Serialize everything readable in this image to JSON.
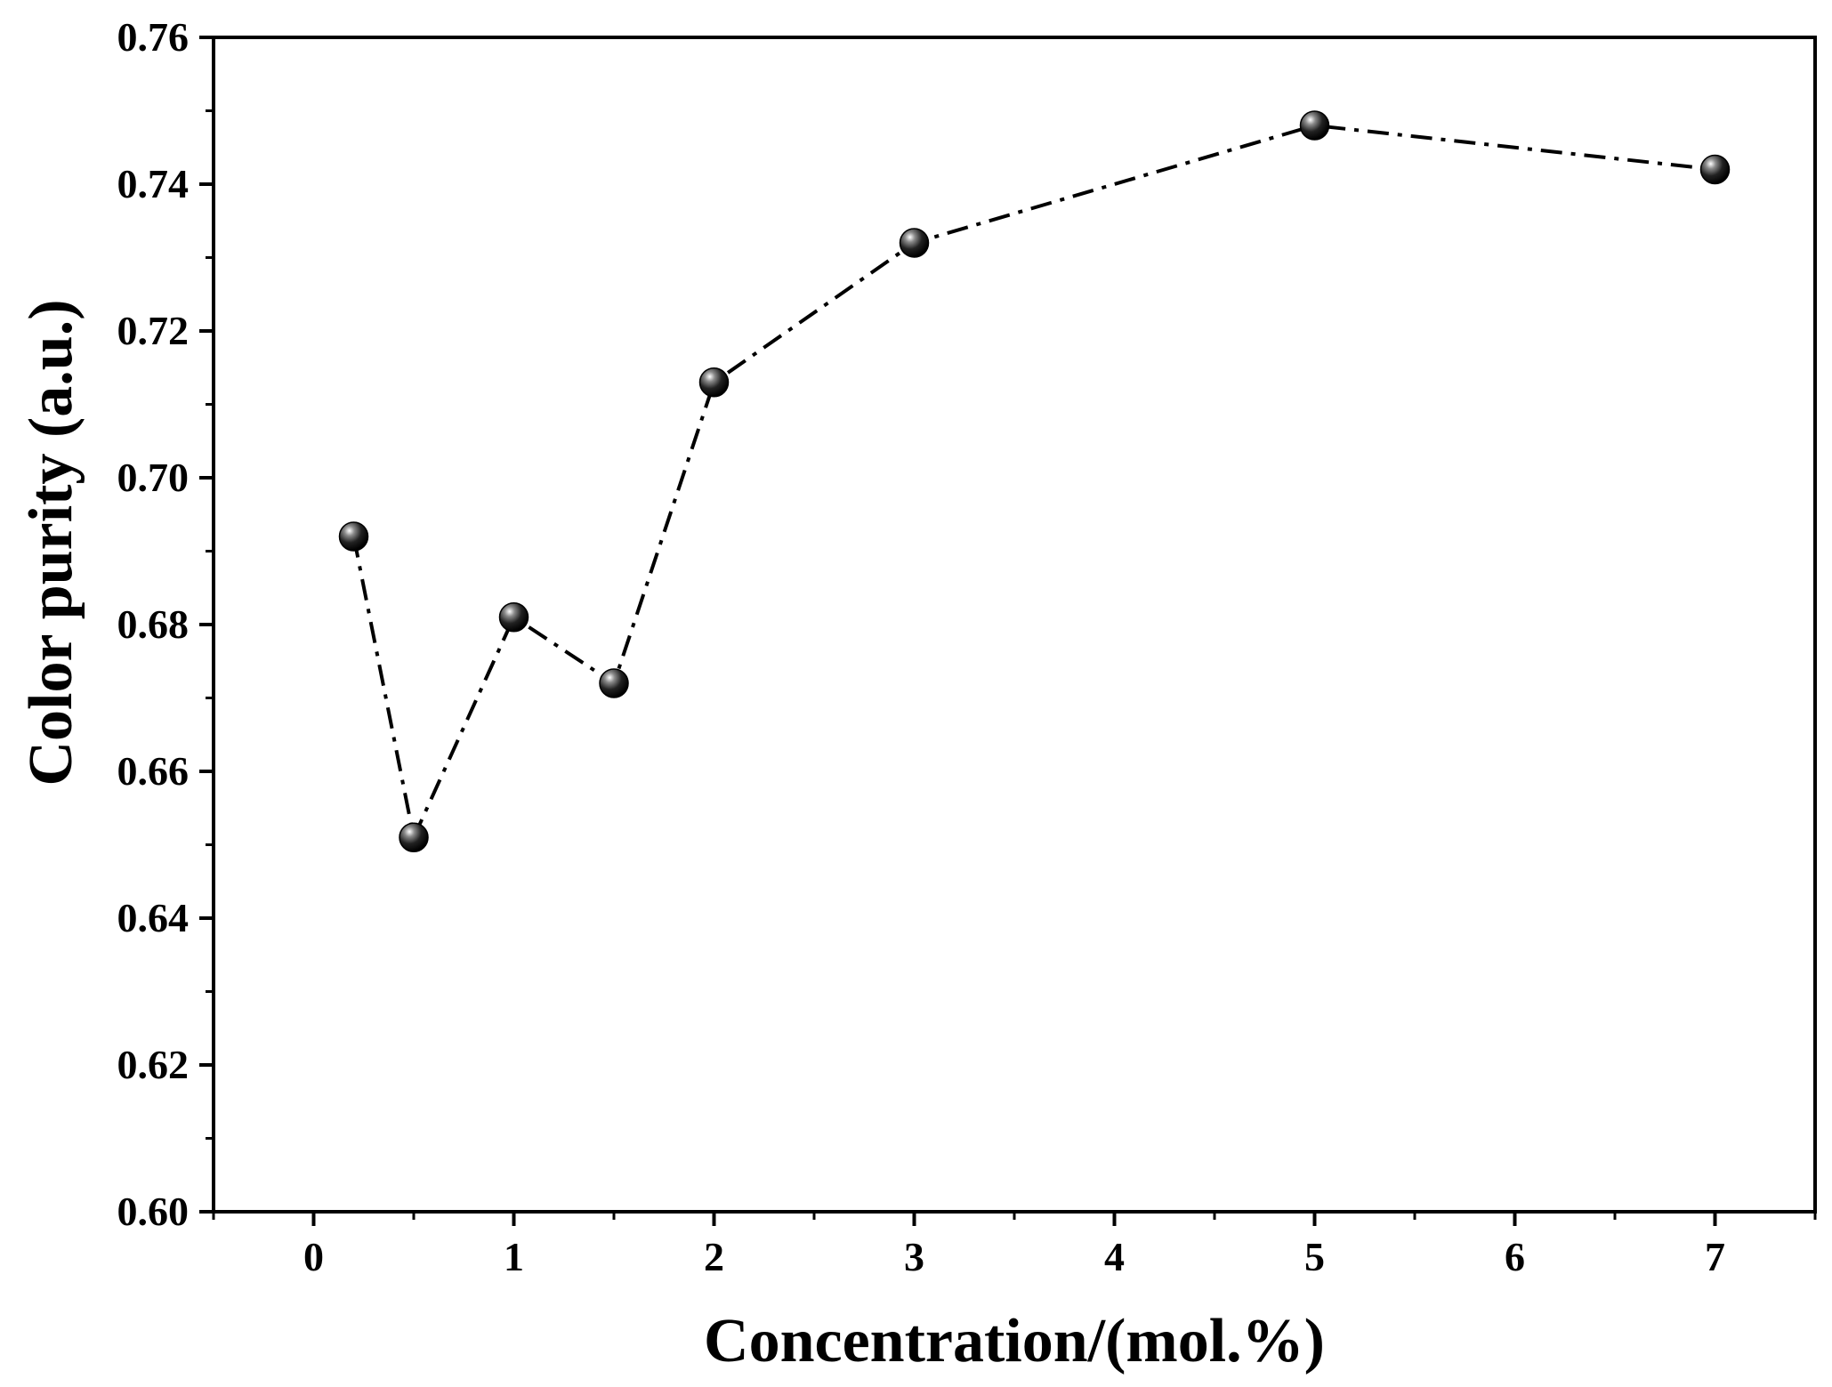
{
  "chart_data": {
    "type": "line",
    "title": "",
    "xlabel": "Concentration/(mol.%)",
    "ylabel": "Color purity (a.u.)",
    "xlim": [
      -0.5,
      7.5
    ],
    "ylim": [
      0.6,
      0.76
    ],
    "xticks": [
      0,
      1,
      2,
      3,
      4,
      5,
      6,
      7
    ],
    "xtick_labels": [
      "0",
      "1",
      "2",
      "3",
      "4",
      "5",
      "6",
      "7"
    ],
    "yticks": [
      0.6,
      0.62,
      0.64,
      0.66,
      0.68,
      0.7,
      0.72,
      0.74,
      0.76
    ],
    "ytick_labels": [
      "0.60",
      "0.62",
      "0.64",
      "0.66",
      "0.68",
      "0.70",
      "0.72",
      "0.74",
      "0.76"
    ],
    "series": [
      {
        "name": "Color purity",
        "line_style": "dash-dot",
        "marker": "sphere",
        "color": "#000000",
        "x": [
          0.2,
          0.5,
          1.0,
          1.5,
          2.0,
          3.0,
          5.0,
          7.0
        ],
        "y": [
          0.692,
          0.651,
          0.681,
          0.672,
          0.713,
          0.732,
          0.748,
          0.742
        ]
      }
    ]
  }
}
